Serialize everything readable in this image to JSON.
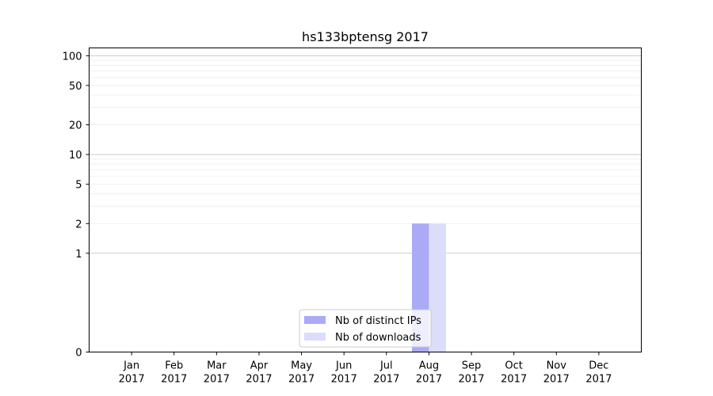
{
  "chart_data": {
    "type": "bar",
    "title": "hs133bptensg 2017",
    "xlabel": "",
    "ylabel": "",
    "categories": [
      [
        "Jan",
        "2017"
      ],
      [
        "Feb",
        "2017"
      ],
      [
        "Mar",
        "2017"
      ],
      [
        "Apr",
        "2017"
      ],
      [
        "May",
        "2017"
      ],
      [
        "Jun",
        "2017"
      ],
      [
        "Jul",
        "2017"
      ],
      [
        "Aug",
        "2017"
      ],
      [
        "Sep",
        "2017"
      ],
      [
        "Oct",
        "2017"
      ],
      [
        "Nov",
        "2017"
      ],
      [
        "Dec",
        "2017"
      ]
    ],
    "series": [
      {
        "name": "Nb of distinct IPs",
        "color": "#aaaaf6",
        "values": [
          0,
          0,
          0,
          0,
          0,
          0,
          0,
          2,
          0,
          0,
          0,
          0
        ]
      },
      {
        "name": "Nb of downloads",
        "color": "#dcdcfb",
        "values": [
          0,
          0,
          0,
          0,
          0,
          0,
          0,
          2,
          0,
          0,
          0,
          0
        ]
      }
    ],
    "y_scale": "symlog",
    "y_ticks": [
      0,
      1,
      2,
      5,
      10,
      20,
      50,
      100
    ],
    "ylim": [
      0,
      120
    ],
    "grid": true,
    "legend_position": "bottom-center"
  }
}
